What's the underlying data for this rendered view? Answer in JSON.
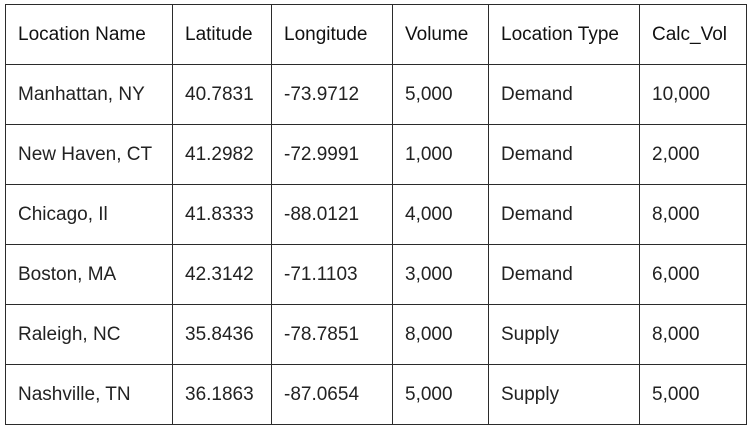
{
  "table": {
    "headers": [
      "Location Name",
      "Latitude",
      "Longitude",
      "Volume",
      "Location Type",
      "Calc_Vol"
    ],
    "rows": [
      [
        "Manhattan, NY",
        "40.7831",
        "-73.9712",
        "5,000",
        "Demand",
        "10,000"
      ],
      [
        "New Haven, CT",
        "41.2982",
        "-72.9991",
        "1,000",
        "Demand",
        "2,000"
      ],
      [
        "Chicago, Il",
        "41.8333",
        "-88.0121",
        "4,000",
        "Demand",
        "8,000"
      ],
      [
        "Boston, MA",
        "42.3142",
        "-71.1103",
        "3,000",
        "Demand",
        "6,000"
      ],
      [
        "Raleigh, NC",
        "35.8436",
        "-78.7851",
        "8,000",
        "Supply",
        "8,000"
      ],
      [
        "Nashville, TN",
        "36.1863",
        "-87.0654",
        "5,000",
        "Supply",
        "5,000"
      ]
    ]
  }
}
